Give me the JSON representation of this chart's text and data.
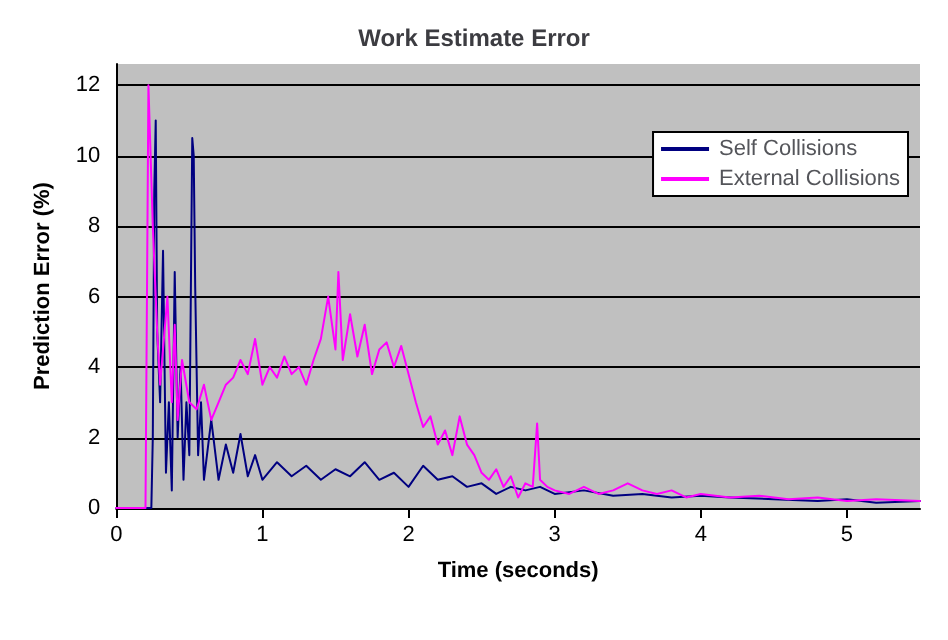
{
  "chart_data": {
    "type": "line",
    "title": "Work Estimate Error",
    "xlabel": "Time (seconds)",
    "ylabel": "Prediction Error (%)",
    "xlim": [
      0,
      5.5
    ],
    "xticks": [
      0,
      1,
      2,
      3,
      4,
      5
    ],
    "ylim": [
      0,
      12.6
    ],
    "yticks": [
      0,
      2,
      4,
      6,
      8,
      10,
      12
    ],
    "grid": "y",
    "legend": "top right",
    "marker": "none",
    "line_style": "solid",
    "series": [
      {
        "name": "Self Collisions",
        "color": "#000080",
        "x": [
          0,
          0.24,
          0.25,
          0.26,
          0.27,
          0.28,
          0.3,
          0.32,
          0.34,
          0.36,
          0.38,
          0.4,
          0.42,
          0.44,
          0.46,
          0.48,
          0.5,
          0.52,
          0.53,
          0.54,
          0.56,
          0.58,
          0.6,
          0.65,
          0.7,
          0.75,
          0.8,
          0.85,
          0.9,
          0.95,
          1.0,
          1.1,
          1.2,
          1.3,
          1.4,
          1.5,
          1.6,
          1.7,
          1.8,
          1.9,
          2.0,
          2.1,
          2.2,
          2.3,
          2.4,
          2.5,
          2.6,
          2.7,
          2.8,
          2.9,
          3.0,
          3.2,
          3.4,
          3.6,
          3.8,
          4.0,
          4.2,
          4.5,
          4.8,
          5.0,
          5.2,
          5.5
        ],
        "values": [
          0,
          0,
          2,
          9,
          11,
          5,
          3,
          7.3,
          1,
          3,
          0.5,
          6.7,
          2,
          4,
          0.8,
          3,
          1.5,
          10.5,
          10,
          6.3,
          1.5,
          3,
          0.8,
          2.5,
          0.8,
          1.8,
          1.0,
          2.1,
          0.9,
          1.5,
          0.8,
          1.3,
          0.9,
          1.2,
          0.8,
          1.1,
          0.9,
          1.3,
          0.8,
          1.0,
          0.6,
          1.2,
          0.8,
          0.9,
          0.6,
          0.7,
          0.4,
          0.6,
          0.5,
          0.6,
          0.4,
          0.5,
          0.35,
          0.4,
          0.3,
          0.35,
          0.3,
          0.25,
          0.2,
          0.25,
          0.15,
          0.2
        ]
      },
      {
        "name": "External Collisions",
        "color": "#ff00ff",
        "x": [
          0,
          0.2,
          0.22,
          0.25,
          0.28,
          0.3,
          0.35,
          0.38,
          0.4,
          0.42,
          0.45,
          0.5,
          0.55,
          0.6,
          0.65,
          0.7,
          0.75,
          0.8,
          0.85,
          0.9,
          0.95,
          1.0,
          1.05,
          1.1,
          1.15,
          1.2,
          1.25,
          1.3,
          1.35,
          1.4,
          1.45,
          1.5,
          1.52,
          1.55,
          1.6,
          1.65,
          1.7,
          1.75,
          1.8,
          1.85,
          1.9,
          1.95,
          2.0,
          2.05,
          2.1,
          2.15,
          2.2,
          2.25,
          2.3,
          2.35,
          2.4,
          2.45,
          2.5,
          2.55,
          2.6,
          2.65,
          2.7,
          2.75,
          2.8,
          2.85,
          2.88,
          2.9,
          2.95,
          3.0,
          3.1,
          3.2,
          3.3,
          3.4,
          3.5,
          3.6,
          3.7,
          3.8,
          3.9,
          4.0,
          4.2,
          4.4,
          4.6,
          4.8,
          5.0,
          5.2,
          5.5
        ],
        "values": [
          0,
          0,
          12,
          8,
          5,
          3.5,
          6,
          3,
          5.2,
          2.5,
          4.2,
          3,
          2.8,
          3.5,
          2.5,
          3,
          3.5,
          3.7,
          4.2,
          3.8,
          4.8,
          3.5,
          4.0,
          3.7,
          4.3,
          3.8,
          4.0,
          3.5,
          4.2,
          4.8,
          6.0,
          4.5,
          6.7,
          4.2,
          5.5,
          4.3,
          5.2,
          3.8,
          4.5,
          4.7,
          4.0,
          4.6,
          3.8,
          3.0,
          2.3,
          2.6,
          1.8,
          2.2,
          1.5,
          2.6,
          1.8,
          1.5,
          1.0,
          0.8,
          1.1,
          0.6,
          0.9,
          0.3,
          0.7,
          0.6,
          2.4,
          0.8,
          0.6,
          0.5,
          0.4,
          0.6,
          0.4,
          0.5,
          0.7,
          0.5,
          0.4,
          0.5,
          0.3,
          0.4,
          0.3,
          0.35,
          0.25,
          0.3,
          0.2,
          0.25,
          0.2
        ]
      }
    ]
  }
}
